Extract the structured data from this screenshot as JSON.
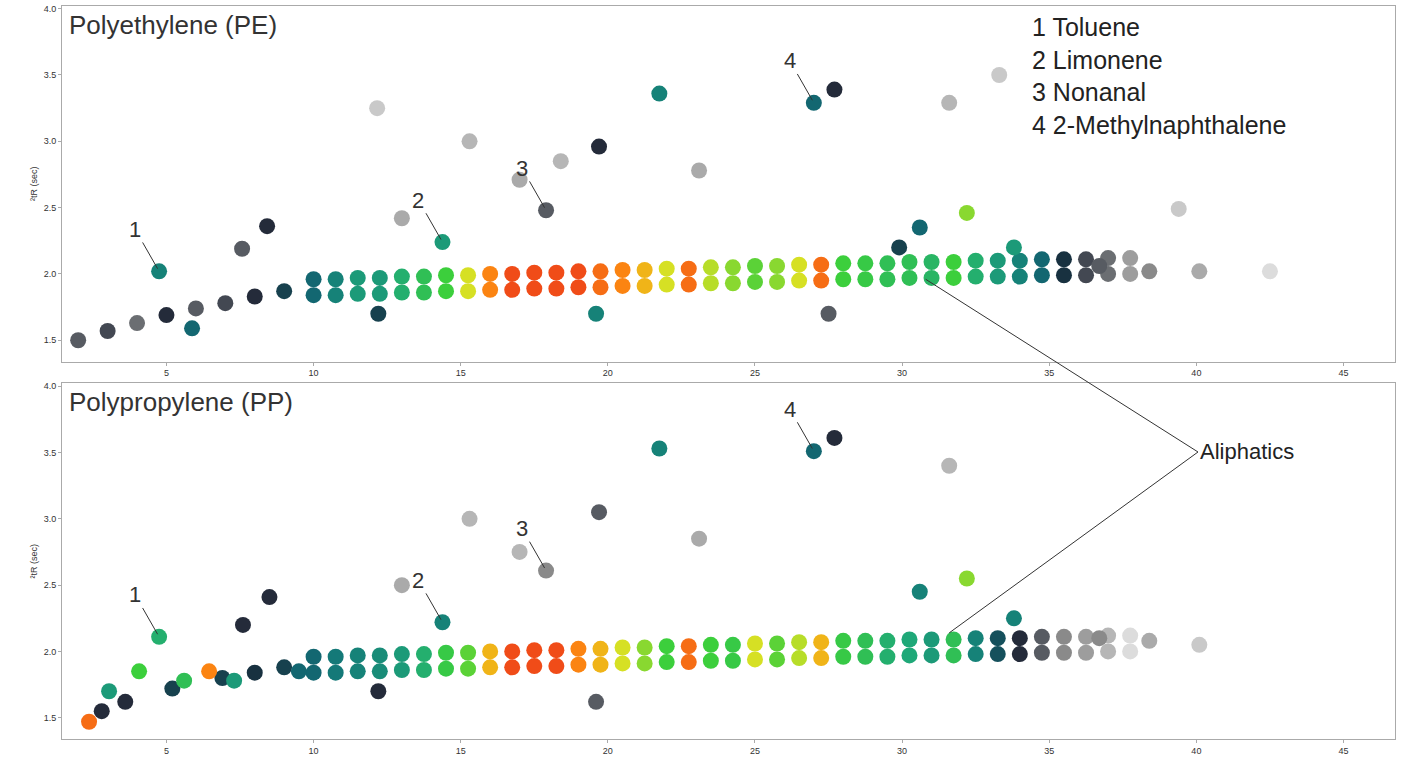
{
  "chart_data": [
    {
      "type": "scatter",
      "title": "Polyethylene (PE)",
      "x": [
        2,
        3,
        4,
        5,
        6,
        7,
        8,
        9,
        10,
        10.75,
        11.5,
        12.25,
        13,
        13.75,
        14.5,
        15.25,
        16,
        16.75,
        17.5,
        18.25,
        19,
        19.75,
        20.5,
        21.25,
        22,
        22.75,
        23.5,
        24.25,
        25,
        25.75,
        26.5,
        27.25,
        28,
        28.75,
        29.5,
        30.25,
        31,
        31.75,
        32.5,
        33.25,
        34,
        34.75,
        35.5,
        36.25,
        37,
        37.75,
        10,
        10.75,
        11.5,
        12.25,
        13,
        13.75,
        14.5,
        15.25,
        16,
        16.75,
        17.5,
        18.25,
        19,
        19.75,
        20.5,
        21.25,
        22,
        22.75,
        23.5,
        24.25,
        25,
        25.75,
        26.5,
        27.25,
        28,
        28.75,
        29.5,
        30.25,
        31,
        31.75,
        32.5,
        33.25,
        34,
        34.75,
        35.5,
        36.25,
        37,
        37.75,
        4.75,
        5.87,
        7.57,
        8.42,
        12.16,
        12.2,
        14.38,
        17.9,
        19.6,
        19.7,
        21.75,
        27.0,
        27.7,
        27.5,
        32.2,
        30.6,
        33.8,
        29.9,
        17.0,
        23.1,
        31.6,
        33.3,
        39.4,
        36.7,
        38.4,
        40.1,
        42.5,
        15.3,
        13.0,
        18.4
      ],
      "y": [
        1.5,
        1.57,
        1.63,
        1.69,
        1.74,
        1.78,
        1.83,
        1.87,
        1.96,
        1.96,
        1.97,
        1.97,
        1.98,
        1.98,
        1.99,
        1.99,
        2.0,
        2.0,
        2.01,
        2.01,
        2.02,
        2.02,
        2.03,
        2.03,
        2.04,
        2.04,
        2.05,
        2.05,
        2.06,
        2.06,
        2.07,
        2.07,
        2.08,
        2.08,
        2.08,
        2.09,
        2.09,
        2.09,
        2.1,
        2.1,
        2.1,
        2.11,
        2.11,
        2.11,
        2.12,
        2.12,
        1.84,
        1.84,
        1.85,
        1.85,
        1.86,
        1.86,
        1.87,
        1.87,
        1.88,
        1.88,
        1.89,
        1.89,
        1.9,
        1.9,
        1.91,
        1.91,
        1.92,
        1.92,
        1.93,
        1.93,
        1.94,
        1.94,
        1.95,
        1.95,
        1.96,
        1.96,
        1.96,
        1.97,
        1.97,
        1.97,
        1.98,
        1.98,
        1.98,
        1.99,
        1.99,
        1.99,
        2.0,
        2.0,
        2.02,
        1.59,
        2.19,
        2.36,
        3.25,
        1.7,
        2.24,
        2.48,
        1.7,
        2.96,
        3.36,
        3.29,
        3.39,
        1.7,
        2.46,
        2.35,
        2.2,
        2.2,
        2.71,
        2.78,
        3.29,
        3.5,
        2.49,
        2.06,
        2.02,
        2.02,
        2.02,
        3.0,
        2.42,
        2.85
      ],
      "intensity": [
        30,
        32,
        28,
        35,
        30,
        32,
        35,
        40,
        45,
        50,
        55,
        55,
        60,
        65,
        70,
        80,
        90,
        95,
        95,
        95,
        95,
        92,
        90,
        85,
        80,
        92,
        78,
        75,
        72,
        75,
        80,
        92,
        70,
        68,
        65,
        65,
        62,
        70,
        60,
        55,
        50,
        45,
        38,
        32,
        28,
        22,
        45,
        50,
        55,
        55,
        60,
        65,
        70,
        80,
        90,
        95,
        95,
        95,
        95,
        92,
        90,
        85,
        80,
        92,
        78,
        75,
        72,
        75,
        80,
        92,
        70,
        68,
        65,
        65,
        62,
        70,
        60,
        55,
        50,
        45,
        38,
        32,
        28,
        22,
        50,
        45,
        30,
        35,
        15,
        40,
        55,
        30,
        50,
        35,
        50,
        45,
        35,
        30,
        75,
        45,
        55,
        40,
        20,
        20,
        18,
        15,
        15,
        30,
        25,
        20,
        12,
        18,
        20,
        18
      ],
      "zlim": [
        0,
        100
      ],
      "xlim": [
        1.45,
        46.75
      ],
      "xticks": [
        5,
        10,
        15,
        20,
        25,
        30,
        35,
        40,
        45
      ],
      "ylim": [
        1.34,
        4.02
      ],
      "yticks": [
        1.5,
        {
          "value": 2,
          "label": "2.0"
        },
        2.5,
        {
          "value": 3,
          "label": "3.0"
        },
        3.5,
        {
          "value": 4,
          "label": "4.0"
        }
      ],
      "y_label": "²tR (sec)",
      "grid": false,
      "annotations": [
        {
          "text": "1",
          "x": 4.75,
          "y": 2.02
        },
        {
          "text": "2",
          "x": 14.38,
          "y": 2.24
        },
        {
          "text": "3",
          "x": 17.9,
          "y": 2.48
        },
        {
          "text": "4",
          "x": 27.0,
          "y": 3.29
        }
      ],
      "compounds": [
        "1 Toluene",
        "2 Limonene",
        "3 Nonanal",
        "4 2-Methylnaphthalene"
      ]
    },
    {
      "type": "scatter",
      "title": "Polypropylene (PP)",
      "x": [
        2.8,
        3.6,
        5.2,
        6.9,
        8.0,
        9.0,
        10,
        10.75,
        11.5,
        12.25,
        13,
        13.75,
        14.5,
        15.25,
        16,
        16.75,
        17.5,
        18.25,
        19,
        19.75,
        20.5,
        21.25,
        22,
        22.75,
        23.5,
        24.25,
        25,
        25.75,
        26.5,
        27.25,
        28,
        28.75,
        29.5,
        30.25,
        31,
        31.75,
        32.5,
        33.25,
        34,
        34.75,
        35.5,
        36.25,
        37,
        37.75,
        10,
        10.75,
        11.5,
        12.25,
        13,
        13.75,
        14.5,
        15.25,
        16,
        16.75,
        17.5,
        18.25,
        19,
        19.75,
        20.5,
        21.25,
        22,
        22.75,
        23.5,
        24.25,
        25,
        25.75,
        26.5,
        27.25,
        28,
        28.75,
        29.5,
        30.25,
        31,
        31.75,
        32.5,
        33.25,
        34,
        34.75,
        35.5,
        36.25,
        37,
        37.75,
        2.37,
        3.05,
        4.07,
        4.75,
        5.6,
        6.45,
        7.3,
        8.5,
        7.6,
        9.5,
        12.2,
        14.38,
        17.9,
        19.6,
        19.7,
        21.75,
        27.0,
        27.7,
        32.2,
        30.6,
        33.8,
        13.0,
        15.3,
        17.0,
        23.1,
        31.6,
        36.7,
        38.4,
        40.1
      ],
      "y": [
        1.55,
        1.62,
        1.72,
        1.8,
        1.84,
        1.88,
        1.96,
        1.96,
        1.97,
        1.97,
        1.98,
        1.98,
        1.99,
        1.99,
        2.0,
        2.0,
        2.01,
        2.01,
        2.02,
        2.02,
        2.03,
        2.03,
        2.04,
        2.04,
        2.05,
        2.05,
        2.06,
        2.06,
        2.07,
        2.07,
        2.08,
        2.08,
        2.08,
        2.09,
        2.09,
        2.09,
        2.1,
        2.1,
        2.1,
        2.11,
        2.11,
        2.11,
        2.12,
        2.12,
        1.84,
        1.84,
        1.85,
        1.85,
        1.86,
        1.86,
        1.87,
        1.87,
        1.88,
        1.88,
        1.89,
        1.89,
        1.9,
        1.9,
        1.91,
        1.91,
        1.92,
        1.92,
        1.93,
        1.93,
        1.94,
        1.94,
        1.95,
        1.95,
        1.96,
        1.96,
        1.96,
        1.97,
        1.97,
        1.97,
        1.98,
        1.98,
        1.98,
        1.99,
        1.99,
        1.99,
        2.0,
        2.0,
        1.47,
        1.7,
        1.85,
        2.11,
        1.78,
        1.85,
        1.78,
        2.41,
        2.2,
        1.85,
        1.7,
        2.22,
        2.61,
        1.62,
        3.05,
        3.53,
        3.51,
        3.61,
        2.55,
        2.45,
        2.25,
        2.5,
        3.0,
        2.75,
        2.85,
        3.4,
        2.1,
        2.08,
        2.05
      ],
      "intensity": [
        35,
        35,
        40,
        40,
        38,
        40,
        45,
        48,
        50,
        52,
        55,
        60,
        68,
        72,
        85,
        95,
        95,
        95,
        90,
        85,
        80,
        75,
        70,
        92,
        70,
        68,
        80,
        72,
        78,
        85,
        68,
        65,
        60,
        58,
        55,
        65,
        50,
        42,
        35,
        30,
        25,
        22,
        18,
        12,
        45,
        48,
        50,
        52,
        55,
        60,
        68,
        72,
        85,
        95,
        95,
        95,
        90,
        85,
        80,
        75,
        70,
        92,
        70,
        68,
        80,
        72,
        78,
        85,
        68,
        65,
        60,
        58,
        55,
        65,
        50,
        42,
        35,
        30,
        25,
        22,
        18,
        12,
        92,
        55,
        70,
        60,
        65,
        90,
        55,
        35,
        35,
        45,
        35,
        50,
        25,
        30,
        30,
        50,
        45,
        35,
        75,
        50,
        50,
        20,
        18,
        18,
        20,
        18,
        25,
        20,
        15
      ],
      "zlim": [
        0,
        100
      ],
      "xlim": [
        1.45,
        46.75
      ],
      "xticks": [
        5,
        10,
        15,
        20,
        25,
        30,
        35,
        40,
        45
      ],
      "ylim": [
        1.34,
        4.02
      ],
      "yticks": [
        1.5,
        {
          "value": 2,
          "label": "2.0"
        },
        2.5,
        {
          "value": 3,
          "label": "3.0"
        },
        3.5,
        {
          "value": 4,
          "label": "4.0"
        }
      ],
      "y_label": "²tR (sec)",
      "grid": false,
      "annotations": [
        {
          "text": "1",
          "x": 4.75,
          "y": 2.11
        },
        {
          "text": "2",
          "x": 14.38,
          "y": 2.22
        },
        {
          "text": "3",
          "x": 17.9,
          "y": 2.61
        },
        {
          "text": "4",
          "x": 27.0,
          "y": 3.51
        }
      ]
    }
  ],
  "callout": {
    "text": "Aliphatics",
    "targets": [
      {
        "chart": 0,
        "x": 30.8,
        "y": 1.96
      },
      {
        "chart": 1,
        "x": 31.6,
        "y": 2.14
      }
    ]
  }
}
